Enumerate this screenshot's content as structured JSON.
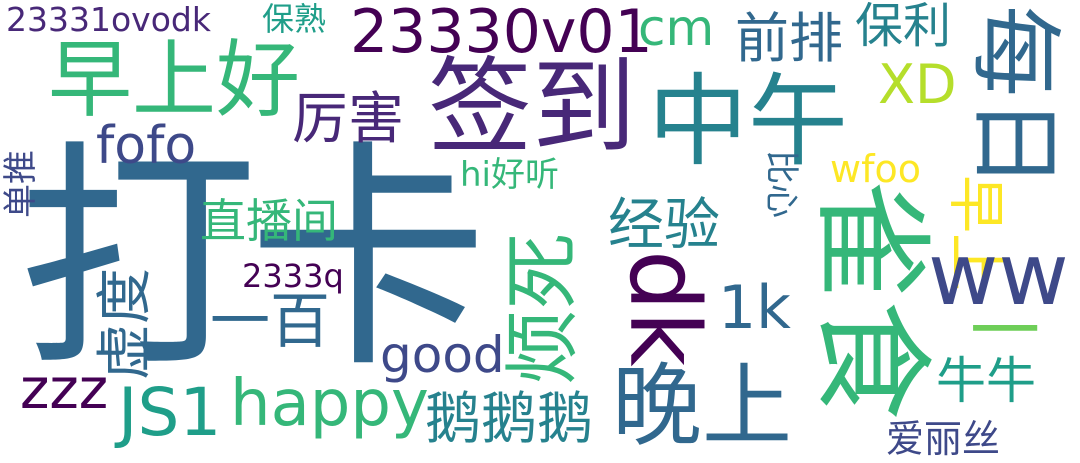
{
  "words": {
    "daka": "打卡",
    "qiandao": "签到",
    "zhongwu": "中午",
    "zaoshanghao": "早上好",
    "meiri": "每日",
    "queshi": "雀食",
    "v23330": "23330v01",
    "ovodk": "23331ovodk",
    "baoshu": "保熟",
    "cm": "cm",
    "qianpai": "前排",
    "baoli": "保利",
    "xd": "XD",
    "lihai": "厉害",
    "fofo": "fofo",
    "hihaoting": "hi好听",
    "wfoo": "wfoo",
    "bixin": "比心",
    "zaoshang": "早上",
    "dantui": "单推",
    "zhibojian": "直播间",
    "jingyan": "经验",
    "fansi": "烦死",
    "dk": "dk",
    "ww": "ww",
    "q2333": "2333q",
    "xuhuan": "虚度",
    "yibai": "一百",
    "k1": "1k",
    "good": "good",
    "niuniu": "牛牛",
    "yi": "一",
    "zzz": "zzz",
    "js1": "JS1",
    "happy": "happy",
    "eee": "鹅鹅鹅",
    "wanshang": "晚上",
    "ailisi": "爱丽丝"
  },
  "colors": {
    "dark_purple": "#440154",
    "purple": "#482878",
    "indigo": "#3e4989",
    "blue": "#31688e",
    "teal": "#26828e",
    "green_teal": "#1f9e89",
    "green": "#35b779",
    "light_green": "#6ece58",
    "lime": "#b5de2b",
    "yellow": "#fde725"
  }
}
